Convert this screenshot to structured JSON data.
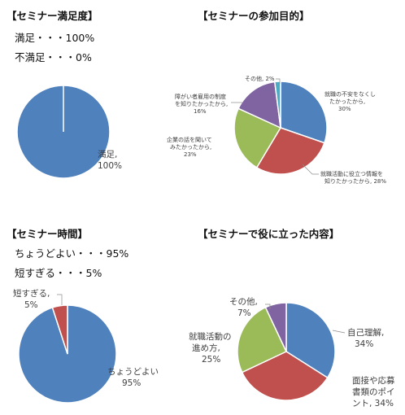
{
  "colors": {
    "blue": "#4f81bd",
    "red": "#c0504d",
    "green": "#9bbb59",
    "purple": "#8064a2",
    "teal": "#4bacc6",
    "divider": "#ffffff"
  },
  "chart_data": [
    {
      "type": "pie",
      "title": "【セミナー満足度】",
      "summary": [
        "満足・・・100%",
        "不満足・・・0%"
      ],
      "slices": [
        {
          "name": "満足",
          "value": 100,
          "label": [
            "満足,",
            "100%"
          ],
          "color": "#4f81bd"
        }
      ]
    },
    {
      "type": "pie",
      "title": "【セミナーの参加目的】",
      "slices": [
        {
          "name": "就職の不安をなくしたかったから",
          "value": 30,
          "label": [
            "就職の不安をなくし",
            "たかったから,",
            "30%"
          ],
          "color": "#4f81bd"
        },
        {
          "name": "就職活動に役立つ情報を知りたかったから",
          "value": 28,
          "label": [
            "就職活動に役立つ情報を",
            "知りたかったから, 28%"
          ],
          "color": "#c0504d"
        },
        {
          "name": "企業の話を聞いてみたかったから",
          "value": 23,
          "label": [
            "企業の話を聞いて",
            "みたかったから,",
            "23%"
          ],
          "color": "#9bbb59"
        },
        {
          "name": "障がい者雇用の制度を知りたかったから",
          "value": 16,
          "label": [
            "障がい者雇用の制度",
            "を知りたかったから,",
            "16%"
          ],
          "color": "#8064a2"
        },
        {
          "name": "その他",
          "value": 2,
          "label": [
            "その他, 2%"
          ],
          "color": "#4bacc6"
        }
      ]
    },
    {
      "type": "pie",
      "title": "【セミナー時間】",
      "summary": [
        "ちょうどよい・・・95%",
        "短すぎる・・・5%"
      ],
      "slices": [
        {
          "name": "ちょうどよい",
          "value": 95,
          "label": [
            "ちょうどよい",
            "95%"
          ],
          "color": "#4f81bd"
        },
        {
          "name": "短すぎる",
          "value": 5,
          "label": [
            "短すぎる,",
            "5%"
          ],
          "color": "#c0504d"
        }
      ]
    },
    {
      "type": "pie",
      "title": "【セミナーで役に立った内容】",
      "slices": [
        {
          "name": "自己理解",
          "value": 34,
          "label": [
            "自己理解,",
            "34%"
          ],
          "color": "#4f81bd"
        },
        {
          "name": "面接や応募書類のポイント",
          "value": 34,
          "label": [
            "面接や応募",
            "書類のポイ",
            "ント, 34%"
          ],
          "color": "#c0504d"
        },
        {
          "name": "就職活動の進め方",
          "value": 25,
          "label": [
            "就職活動の",
            "進め方,",
            "25%"
          ],
          "color": "#9bbb59"
        },
        {
          "name": "その他",
          "value": 7,
          "label": [
            "その他,",
            "7%"
          ],
          "color": "#8064a2"
        }
      ]
    }
  ]
}
